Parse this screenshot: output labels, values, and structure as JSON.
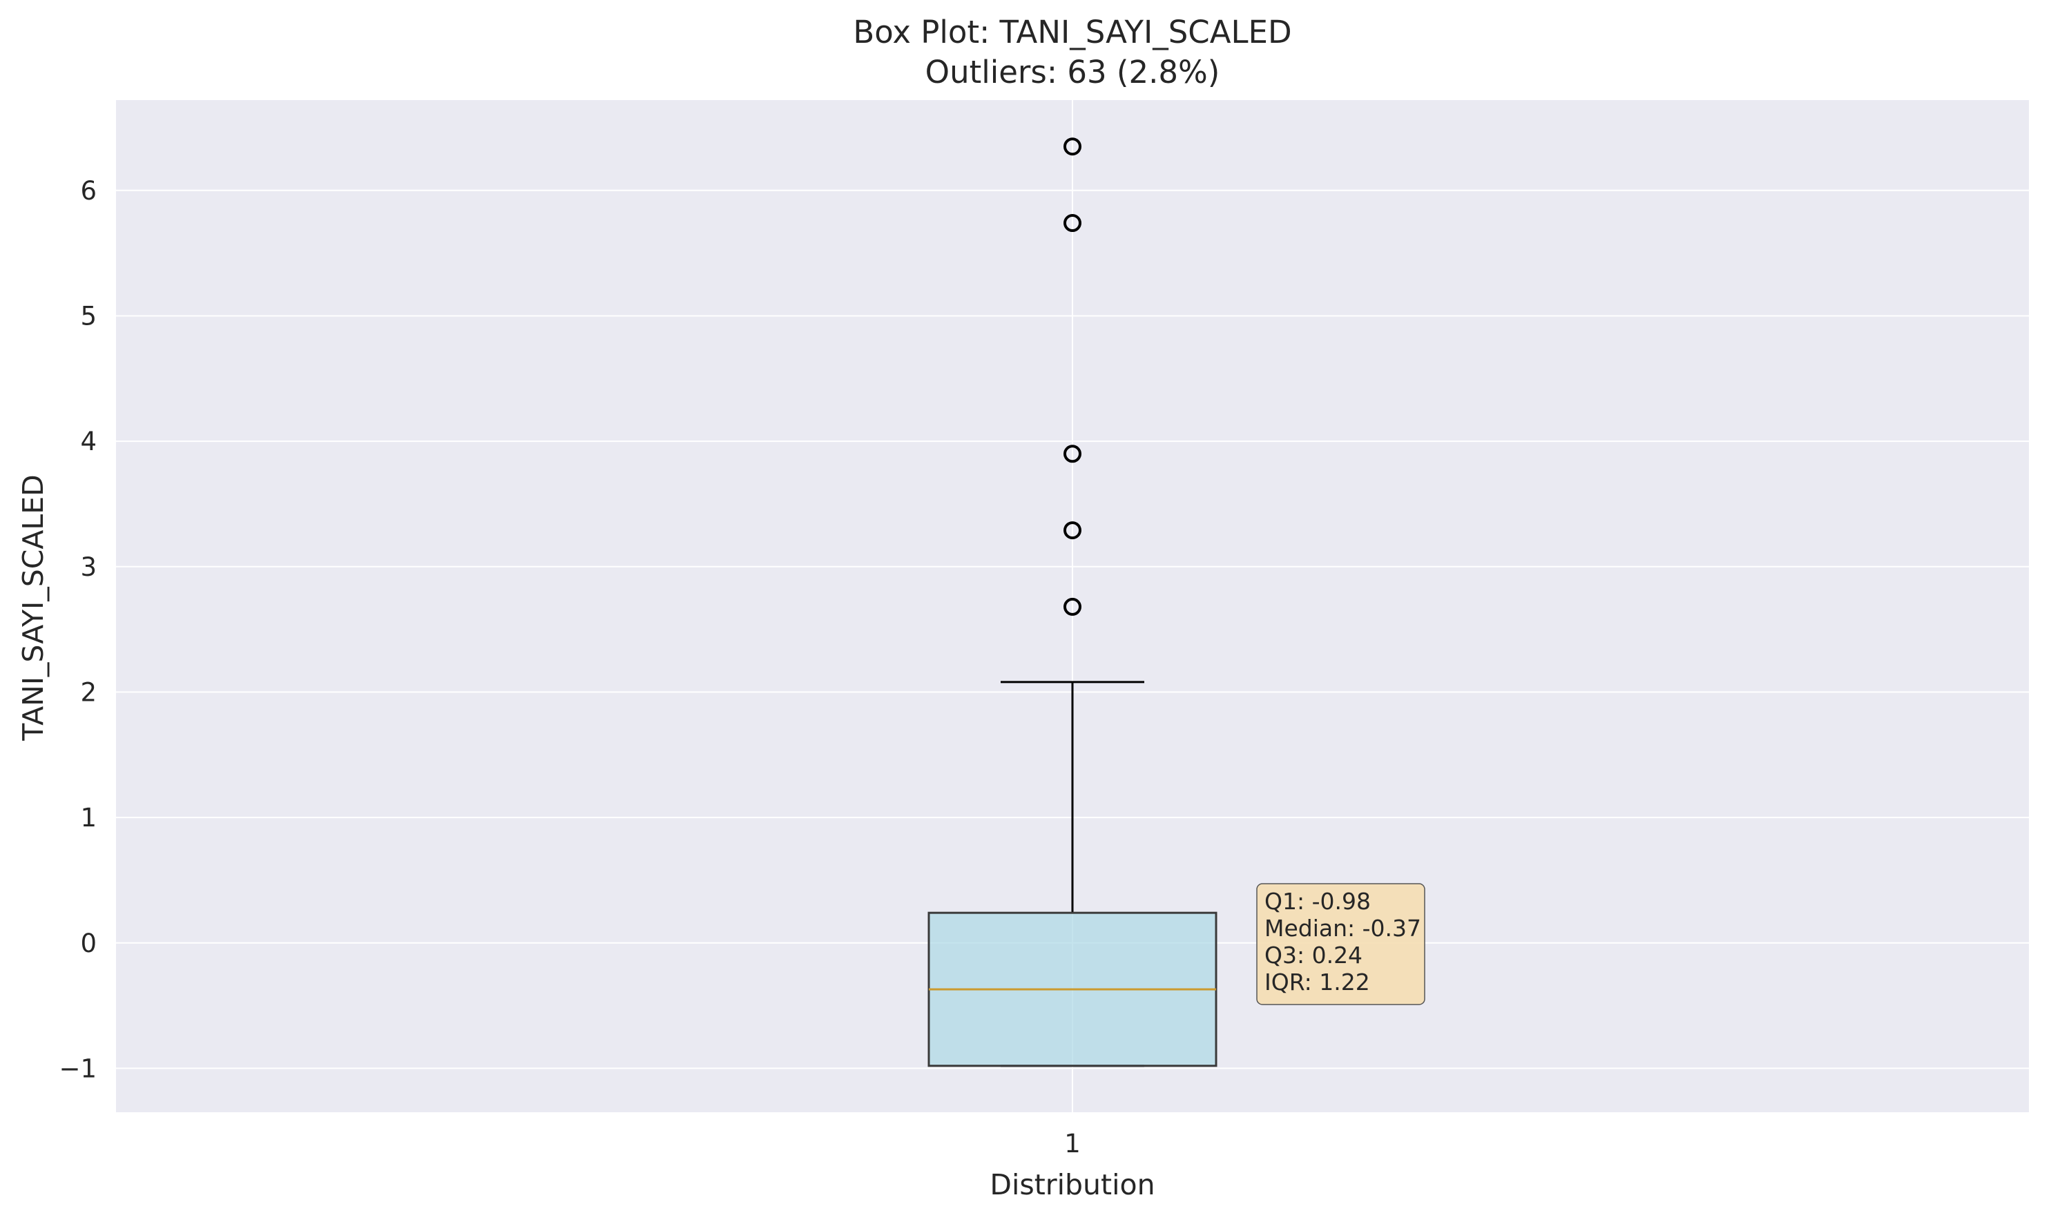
{
  "chart_data": {
    "type": "box",
    "title": "Box Plot: TANI_SAYI_SCALED",
    "subtitle": "Outliers: 63 (2.8%)",
    "xlabel": "Distribution",
    "ylabel": "TANI_SAYI_SCALED",
    "categories": [
      "1"
    ],
    "ylim": [
      -1.35,
      6.72
    ],
    "xlim": [
      0.5,
      1.5
    ],
    "yticks": [
      -1,
      0,
      1,
      2,
      3,
      4,
      5,
      6
    ],
    "ytick_labels": [
      "−1",
      "0",
      "1",
      "2",
      "3",
      "4",
      "5",
      "6"
    ],
    "grid": true,
    "box": {
      "position": 1,
      "whisker_low": -0.98,
      "q1": -0.98,
      "median": -0.37,
      "q3": 0.24,
      "whisker_high": 2.08,
      "outliers": [
        2.68,
        3.29,
        3.9,
        5.74,
        6.35
      ]
    },
    "stats_box": {
      "lines": [
        "Q1: -0.98",
        "Median: -0.37",
        "Q3: 0.24",
        "IQR: 1.22"
      ],
      "placement": "right of box"
    },
    "colors": {
      "plot_background": "#eaeaf2",
      "grid": "#ffffff",
      "box_fill": "#add8e6",
      "median": "#cc9a2e",
      "whisker": "#000000",
      "box_edge": "#3a3a3a",
      "stats_box_fill": "#f5deb3"
    }
  }
}
